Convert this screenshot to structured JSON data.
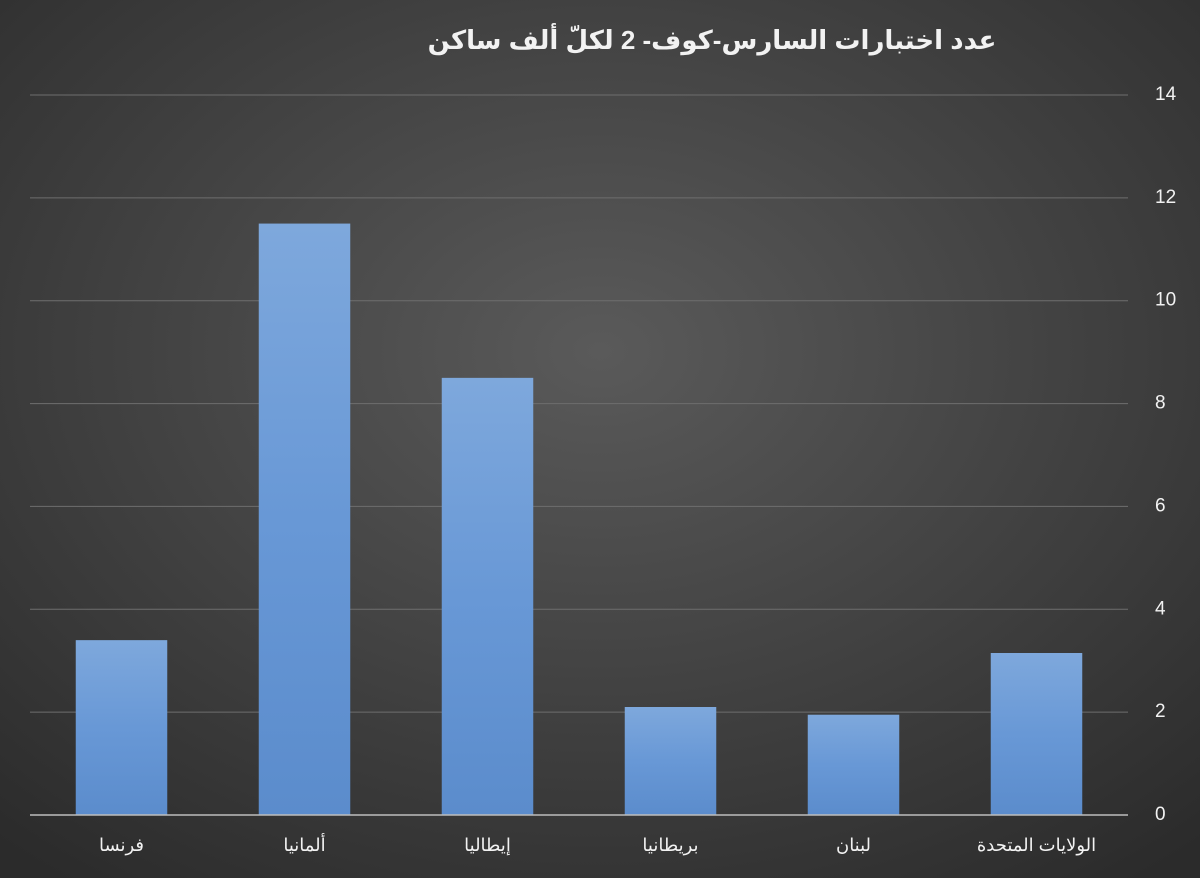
{
  "chart_data": {
    "type": "bar",
    "title": "عدد اختبارات السارس-كوف- 2 لكلّ ألف ساكن",
    "categories": [
      "فرنسا",
      "ألمانيا",
      "إيطاليا",
      "بريطانيا",
      "لبنان",
      "الولايات المتحدة"
    ],
    "values": [
      3.4,
      11.5,
      8.5,
      2.1,
      1.95,
      3.15
    ],
    "color": "#6a9bd8",
    "ylim": [
      0,
      14
    ],
    "yticks": [
      0,
      2,
      4,
      6,
      8,
      10,
      12,
      14
    ],
    "grid": true,
    "y_axis_side": "right"
  }
}
